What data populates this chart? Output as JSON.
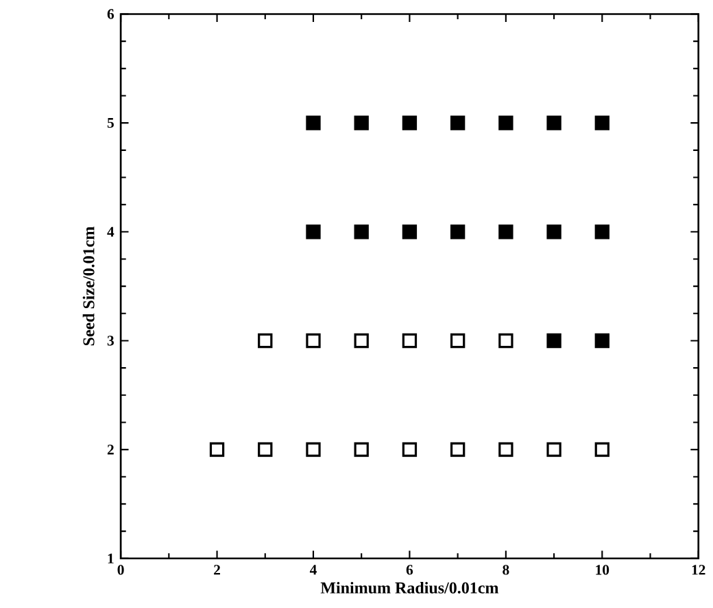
{
  "chart_data": {
    "type": "scatter",
    "xlabel": "Minimum  Radius/0.01cm",
    "ylabel": "Seed  Size/0.01cm",
    "xlim": [
      0,
      12
    ],
    "ylim": [
      1,
      6
    ],
    "xticks": [
      0,
      2,
      4,
      6,
      8,
      10,
      12
    ],
    "yticks": [
      1,
      2,
      3,
      4,
      5,
      6
    ],
    "marker": "square",
    "series": [
      {
        "color": "#ffffff",
        "x": [
          2,
          3,
          4,
          5,
          6,
          7,
          8,
          9,
          10,
          3,
          4,
          5,
          6,
          7,
          8
        ],
        "values": [
          2,
          2,
          2,
          2,
          2,
          2,
          2,
          2,
          2,
          3,
          3,
          3,
          3,
          3,
          3
        ]
      },
      {
        "color": "#000000",
        "x": [
          9,
          10,
          4,
          5,
          6,
          7,
          8,
          9,
          10,
          4,
          5,
          6,
          7,
          8,
          9,
          10
        ],
        "values": [
          3,
          3,
          4,
          4,
          4,
          4,
          4,
          4,
          4,
          5,
          5,
          5,
          5,
          5,
          5,
          5
        ]
      }
    ]
  }
}
